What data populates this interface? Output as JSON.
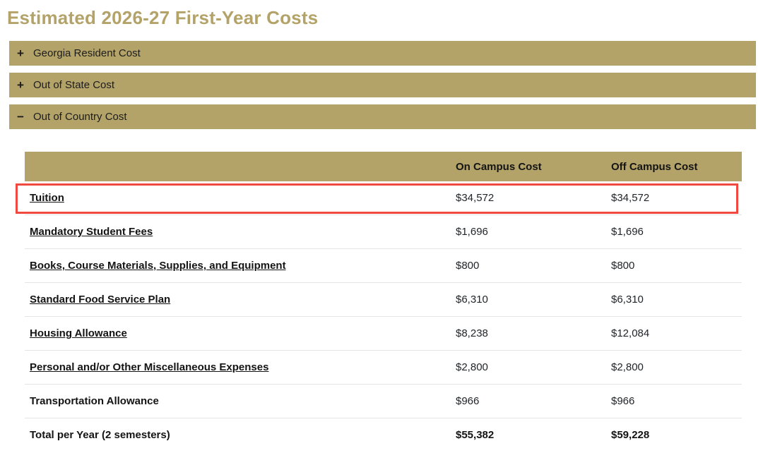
{
  "page": {
    "title": "Estimated 2026-27 First-Year Costs"
  },
  "colors": {
    "gold": "#b3a369",
    "highlight_red": "#f04a40"
  },
  "accordions": [
    {
      "label": "Georgia Resident Cost",
      "icon": "plus-icon",
      "icon_glyph": "+",
      "state": "collapsed"
    },
    {
      "label": "Out of State Cost",
      "icon": "plus-icon",
      "icon_glyph": "+",
      "state": "collapsed"
    },
    {
      "label": "Out of Country Cost",
      "icon": "minus-icon",
      "icon_glyph": "−",
      "state": "expanded"
    }
  ],
  "table": {
    "headers": {
      "item": "",
      "on_campus": "On Campus Cost",
      "off_campus": "Off Campus Cost"
    },
    "rows": [
      {
        "label": "Tuition",
        "on_campus": "$34,572",
        "off_campus": "$34,572",
        "link": true,
        "highlighted": true
      },
      {
        "label": "Mandatory Student Fees",
        "on_campus": "$1,696",
        "off_campus": "$1,696",
        "link": true
      },
      {
        "label": "Books, Course Materials, Supplies, and Equipment",
        "on_campus": "$800",
        "off_campus": "$800",
        "link": true
      },
      {
        "label": "Standard Food Service Plan",
        "on_campus": "$6,310",
        "off_campus": "$6,310",
        "link": true
      },
      {
        "label": "Housing Allowance",
        "on_campus": "$8,238",
        "off_campus": "$12,084",
        "link": true
      },
      {
        "label": "Personal and/or Other Miscellaneous Expenses",
        "on_campus": "$2,800",
        "off_campus": "$2,800",
        "link": true
      },
      {
        "label": "Transportation Allowance",
        "on_campus": "$966",
        "off_campus": "$966",
        "link": false
      },
      {
        "label": "Total per Year (2 semesters)",
        "on_campus": "$55,382",
        "off_campus": "$59,228",
        "link": false,
        "total": true
      }
    ]
  }
}
